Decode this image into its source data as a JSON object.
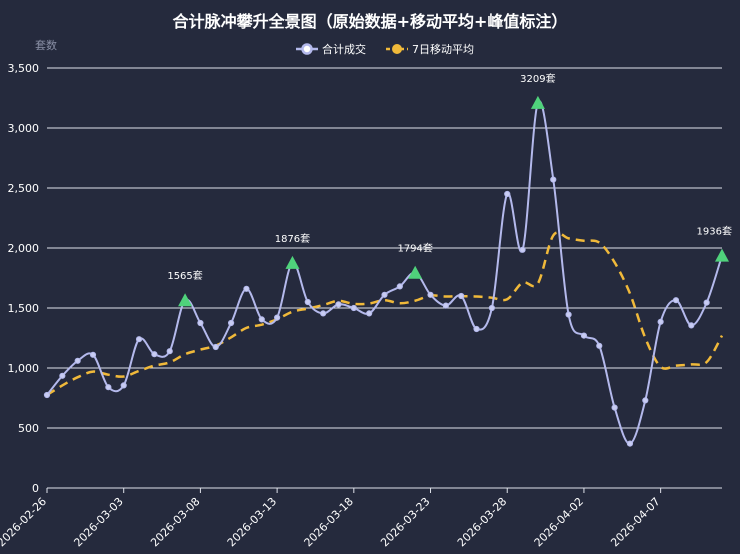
{
  "chart_data": {
    "type": "line",
    "title": "合计脉冲攀升全景图（原始数据+移动平均+峰值标注）",
    "ylabel": "套数",
    "ylim": [
      0,
      3500
    ],
    "yticks": [
      "0",
      "500",
      "1,000",
      "1,500",
      "2,000",
      "2,500",
      "3,000",
      "3,500"
    ],
    "xtick_labels": [
      "2026-02-26",
      "2026-03-03",
      "2026-03-08",
      "2026-03-13",
      "2026-03-18",
      "2026-03-23",
      "2026-03-28",
      "2026-04-02",
      "2026-04-07"
    ],
    "x": [
      "2026-02-26",
      "2026-02-27",
      "2026-02-28",
      "2026-03-01",
      "2026-03-02",
      "2026-03-03",
      "2026-03-04",
      "2026-03-05",
      "2026-03-06",
      "2026-03-07",
      "2026-03-08",
      "2026-03-09",
      "2026-03-10",
      "2026-03-11",
      "2026-03-12",
      "2026-03-13",
      "2026-03-14",
      "2026-03-15",
      "2026-03-16",
      "2026-03-17",
      "2026-03-18",
      "2026-03-19",
      "2026-03-20",
      "2026-03-21",
      "2026-03-22",
      "2026-03-23",
      "2026-03-24",
      "2026-03-25",
      "2026-03-26",
      "2026-03-27",
      "2026-03-28",
      "2026-03-29",
      "2026-03-30",
      "2026-03-31",
      "2026-04-01",
      "2026-04-02",
      "2026-04-03",
      "2026-04-04",
      "2026-04-05",
      "2026-04-06",
      "2026-04-07",
      "2026-04-08",
      "2026-04-09",
      "2026-04-10",
      "2026-04-11"
    ],
    "series": [
      {
        "name": "合计成交",
        "color": "#b4b9ec",
        "values": [
          775,
          935,
          1060,
          1110,
          840,
          855,
          1240,
          1115,
          1140,
          1565,
          1375,
          1175,
          1375,
          1660,
          1405,
          1420,
          1876,
          1550,
          1455,
          1530,
          1500,
          1455,
          1610,
          1680,
          1794,
          1610,
          1520,
          1600,
          1325,
          1500,
          2450,
          1985,
          3209,
          2570,
          1445,
          1270,
          1185,
          670,
          370,
          730,
          1385,
          1565,
          1355,
          1545,
          1936
        ]
      },
      {
        "name": "7日移动平均",
        "color": "#f0b93a",
        "values": [
          775,
          855,
          923,
          970,
          944,
          929,
          976,
          1020,
          1047,
          1115,
          1153,
          1186,
          1256,
          1334,
          1361,
          1406,
          1469,
          1495,
          1525,
          1559,
          1534,
          1537,
          1565,
          1539,
          1561,
          1603,
          1596,
          1598,
          1596,
          1586,
          1573,
          1712,
          1705,
          2105,
          2080,
          2060,
          2045,
          1880,
          1620,
          1250,
          1010,
          1020,
          1030,
          1050,
          1270
        ]
      }
    ],
    "peaks": [
      {
        "x": "2026-03-07",
        "value": 1565,
        "label": "1565套"
      },
      {
        "x": "2026-03-14",
        "value": 1876,
        "label": "1876套"
      },
      {
        "x": "2026-03-22",
        "value": 1794,
        "label": "1794套"
      },
      {
        "x": "2026-03-30",
        "value": 3209,
        "label": "3209套"
      },
      {
        "x": "2026-04-11",
        "value": 1936,
        "label": "1936套"
      }
    ],
    "peak_marker_color": "#4fd27b",
    "grid": "horizontal",
    "legend_position": "top-center"
  }
}
